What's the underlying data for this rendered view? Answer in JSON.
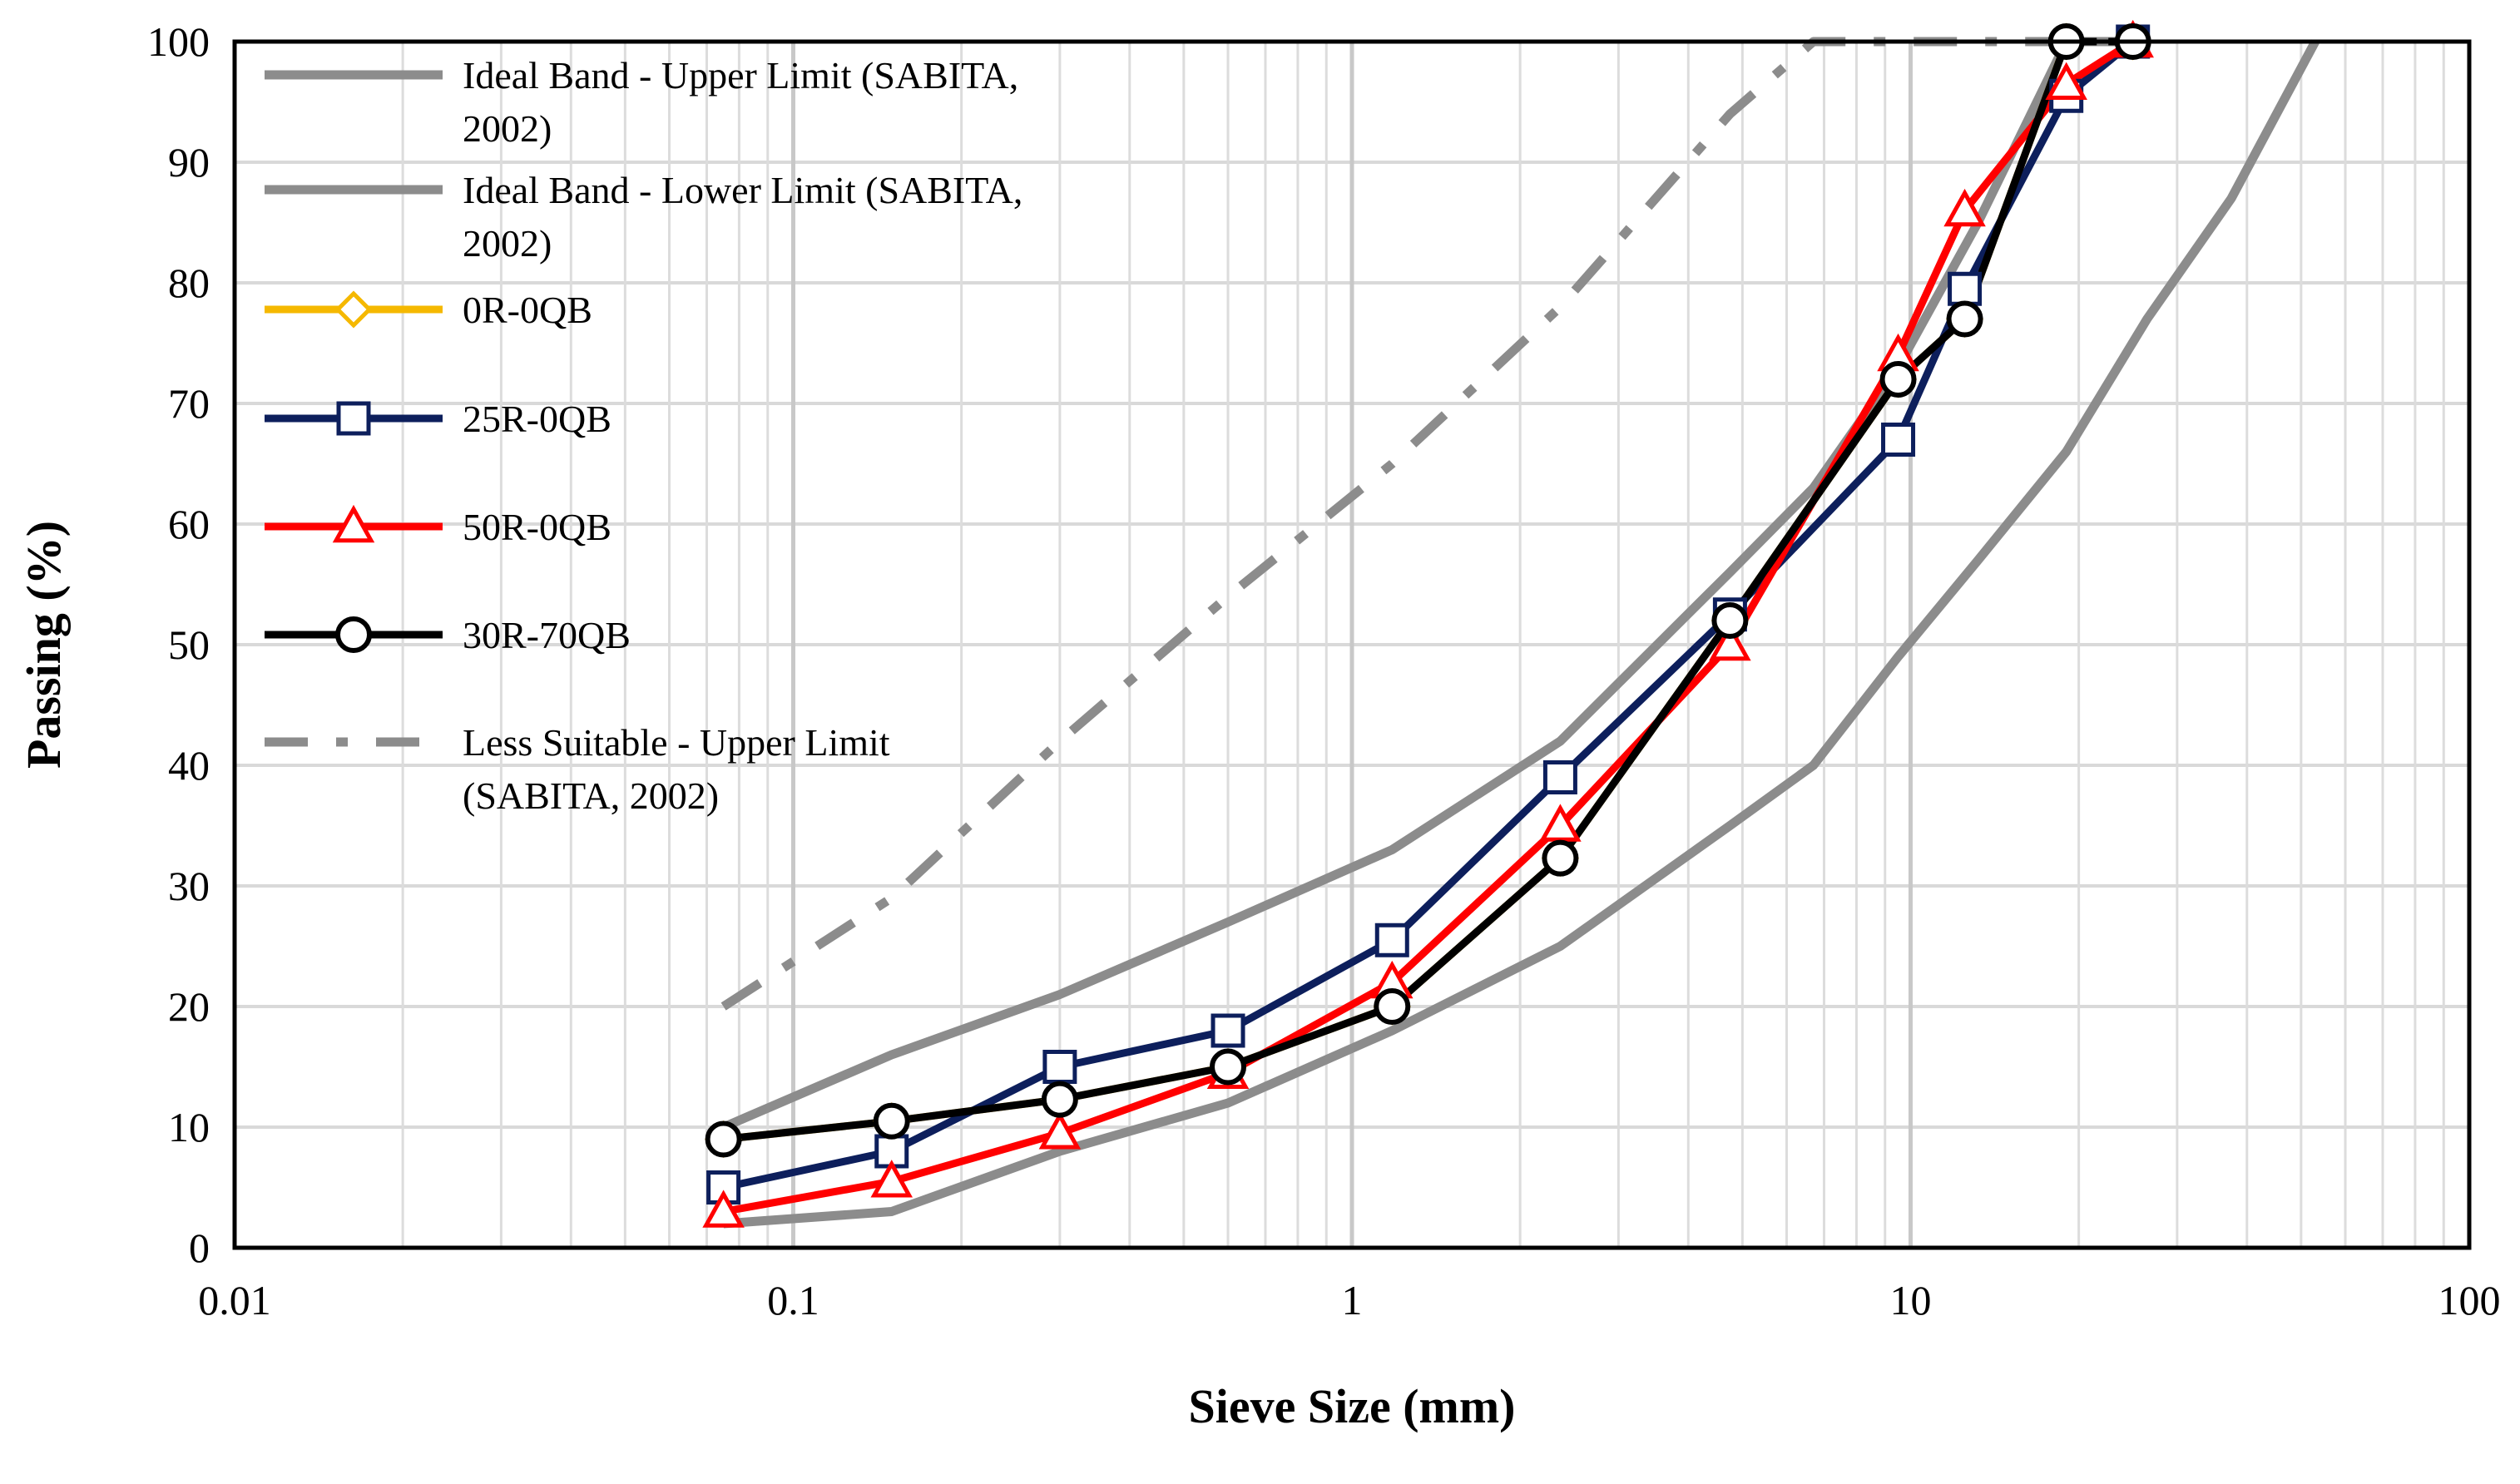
{
  "chart_data": {
    "type": "line",
    "title": "",
    "xlabel": "Sieve Size (mm)",
    "ylabel": "Passing (%)",
    "xscale": "log",
    "xlim": [
      0.01,
      100
    ],
    "ylim": [
      0,
      100
    ],
    "grid": true,
    "legend_position": "top-left",
    "x_ticks": [
      0.01,
      0.1,
      1,
      10,
      100
    ],
    "x_tick_labels": [
      "0.01",
      "0.1",
      "1",
      "10",
      "100"
    ],
    "y_ticks": [
      0,
      10,
      20,
      30,
      40,
      50,
      60,
      70,
      80,
      90,
      100
    ],
    "y_tick_labels": [
      "0",
      "10",
      "20",
      "30",
      "40",
      "50",
      "60",
      "70",
      "80",
      "90",
      "100"
    ],
    "series": [
      {
        "name": "Ideal Band - Upper Limit (SABITA, 2002)",
        "legend_lines": [
          "Ideal Band - Upper Limit (SABITA,",
          "2002)"
        ],
        "color": "#8c8c8c",
        "dash": "solid",
        "marker": "none",
        "x": [
          0.075,
          0.15,
          0.3,
          0.6,
          1.18,
          2.36,
          4.75,
          6.7,
          9.5,
          13.2,
          19,
          26.5
        ],
        "y": [
          10,
          16,
          21,
          27,
          33,
          42,
          56,
          63,
          73,
          85,
          100,
          100
        ]
      },
      {
        "name": "Ideal Band - Lower Limit (SABITA, 2002)",
        "legend_lines": [
          "Ideal Band - Lower Limit (SABITA,",
          "2002)"
        ],
        "color": "#8c8c8c",
        "dash": "solid",
        "marker": "none",
        "x": [
          0.075,
          0.15,
          0.3,
          0.6,
          1.18,
          2.36,
          4.75,
          6.7,
          9.5,
          13.2,
          19,
          26.5,
          37.5,
          53
        ],
        "y": [
          2,
          3,
          8,
          12,
          18,
          25,
          35,
          40,
          49,
          57,
          66,
          77,
          87,
          100
        ]
      },
      {
        "name": "0R-0QB",
        "legend_lines": [
          "0R-0QB"
        ],
        "color": "#f5b800",
        "dash": "solid",
        "marker": "diamond",
        "x": [
          0.075,
          0.15,
          0.3,
          0.6,
          1.18,
          2.36,
          4.75,
          9.5,
          12.5,
          19,
          25
        ],
        "y": [
          9,
          10.5,
          12.3,
          15,
          20,
          32.3,
          52,
          72,
          77,
          100,
          100
        ]
      },
      {
        "name": "25R-0QB",
        "legend_lines": [
          "25R-0QB"
        ],
        "color": "#0d1f5c",
        "dash": "solid",
        "marker": "square",
        "x": [
          0.075,
          0.15,
          0.3,
          0.6,
          1.18,
          2.36,
          4.75,
          9.5,
          12.5,
          19,
          25
        ],
        "y": [
          5,
          8,
          15,
          18,
          25.5,
          39,
          52.5,
          67,
          79.5,
          95.5,
          100
        ]
      },
      {
        "name": "50R-0QB",
        "legend_lines": [
          "50R-0QB"
        ],
        "color": "#ff0000",
        "dash": "solid",
        "marker": "triangle",
        "x": [
          0.075,
          0.15,
          0.3,
          0.6,
          1.18,
          2.36,
          4.75,
          9.5,
          12.5,
          19,
          25
        ],
        "y": [
          3,
          5.5,
          9.5,
          14.5,
          22,
          35,
          50,
          74,
          86,
          96.5,
          100
        ]
      },
      {
        "name": "30R-70QB",
        "legend_lines": [
          "30R-70QB"
        ],
        "color": "#000000",
        "dash": "solid",
        "marker": "circle",
        "x": [
          0.075,
          0.15,
          0.3,
          0.6,
          1.18,
          2.36,
          4.75,
          9.5,
          12.5,
          19,
          25
        ],
        "y": [
          9,
          10.5,
          12.3,
          15,
          20,
          32.3,
          52,
          72,
          77,
          100,
          100
        ]
      },
      {
        "name": "Less Suitable - Upper Limit (SABITA, 2002)",
        "legend_lines": [
          "Less Suitable - Upper Limit",
          "(SABITA, 2002)"
        ],
        "color": "#8c8c8c",
        "dash": "dashdot",
        "marker": "none",
        "x": [
          0.075,
          0.15,
          0.3,
          0.6,
          1.18,
          2.36,
          4.75,
          6.7,
          9.5,
          13.2,
          19,
          26.5
        ],
        "y": [
          20,
          29,
          42,
          54,
          65,
          78,
          94,
          100,
          100,
          100,
          100,
          100
        ]
      }
    ]
  }
}
